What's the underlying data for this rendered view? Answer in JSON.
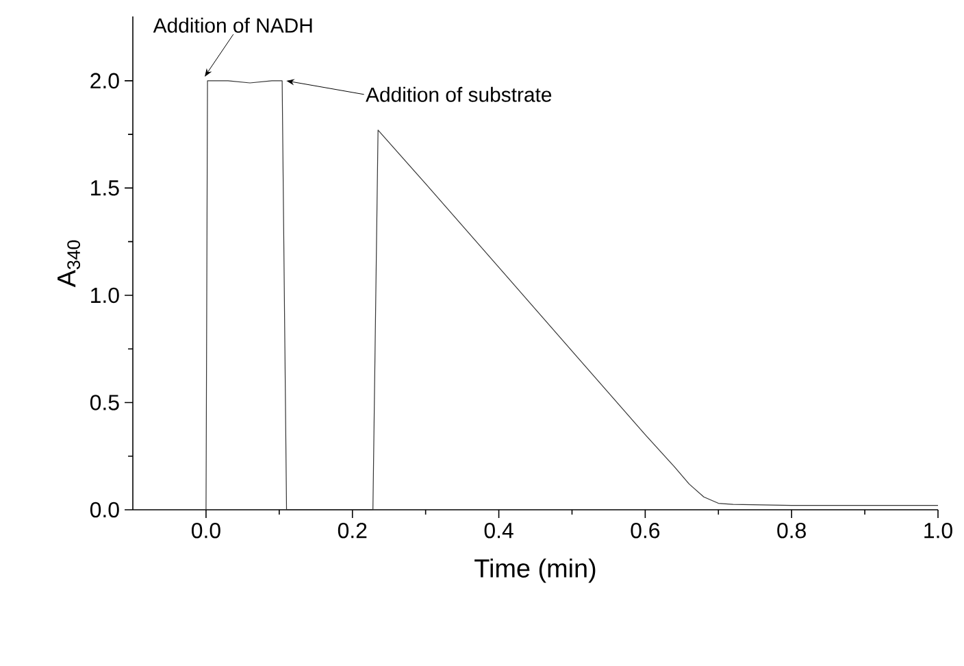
{
  "chart_data": {
    "type": "line",
    "xlabel": "Time (min)",
    "ylabel": "A$_{340}$",
    "xlim": [
      -0.1,
      1.0
    ],
    "xticks": [
      {
        "value": 0.0,
        "label": "0.0"
      },
      0.2,
      0.4,
      0.6,
      0.8,
      {
        "value": 1.0,
        "label": "1.0"
      }
    ],
    "ylim": [
      0,
      2.3
    ],
    "yticks": [
      {
        "value": 0.0,
        "label": "0.0"
      },
      0.5,
      {
        "value": 1.0,
        "label": "1.0"
      },
      1.5,
      {
        "value": 2.0,
        "label": "2.0"
      }
    ],
    "series": [
      {
        "color": "#333333",
        "x": [
          0.0,
          0.002,
          0.03,
          0.06,
          0.09,
          0.104,
          0.11,
          0.228,
          0.235,
          0.3,
          0.4,
          0.5,
          0.6,
          0.64,
          0.66,
          0.68,
          0.7,
          0.72,
          0.8,
          0.9,
          1.0
        ],
        "values": [
          0.0,
          2.0,
          2.0,
          1.99,
          2.0,
          2.0,
          0.0,
          0.0,
          1.77,
          1.52,
          1.13,
          0.74,
          0.35,
          0.2,
          0.12,
          0.06,
          0.03,
          0.025,
          0.02,
          0.02,
          0.02
        ]
      }
    ],
    "annotations": [
      {
        "text": "Addition of NADH",
        "x": 0.0,
        "y": 2.0
      },
      {
        "text": "Addition of substrate",
        "x": 0.104,
        "y": 2.0
      }
    ]
  }
}
